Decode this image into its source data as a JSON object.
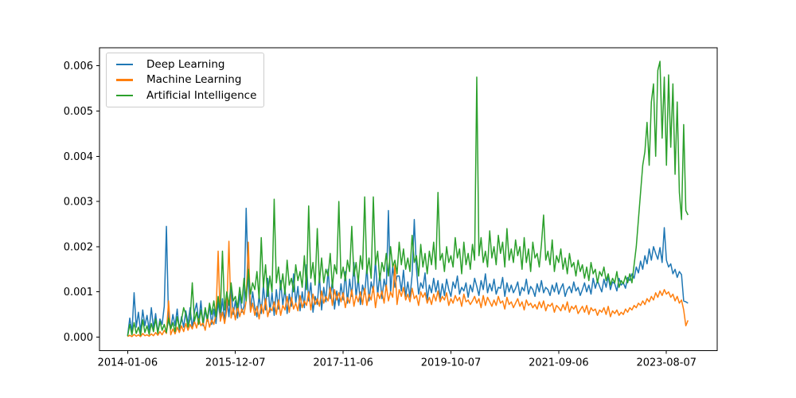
{
  "chart_data": {
    "type": "line",
    "title": "",
    "xlabel": "",
    "ylabel": "",
    "grid": false,
    "legend_position": "upper-left",
    "x_tick_labels": [
      "2014-01-06",
      "2015-12-07",
      "2017-11-06",
      "2019-10-07",
      "2021-09-06",
      "2023-08-07"
    ],
    "x_tick_weeks": [
      0,
      100,
      200,
      300,
      400,
      500
    ],
    "y_tick_labels": [
      "0.000",
      "0.001",
      "0.002",
      "0.003",
      "0.004",
      "0.005",
      "0.006"
    ],
    "xlim_weeks": [
      -26.1,
      547.1
    ],
    "ylim": [
      -0.0003,
      0.0064
    ],
    "weeks_per_point": 2,
    "value_scale": 0.0001,
    "series": [
      {
        "name": "Deep Learning",
        "color": "#1f77b4",
        "values": [
          0.3,
          4.2,
          1.0,
          9.8,
          2.2,
          5.5,
          1.2,
          6.0,
          2.5,
          4.8,
          1.5,
          6.5,
          2.0,
          5.2,
          1.0,
          4.0,
          2.8,
          6.8,
          24.5,
          3.5,
          1.8,
          5.0,
          2.5,
          6.2,
          1.5,
          4.5,
          2.2,
          5.8,
          3.0,
          6.5,
          2.0,
          5.5,
          7.5,
          3.2,
          8.0,
          2.5,
          6.0,
          3.5,
          7.0,
          2.8,
          6.2,
          3.0,
          7.8,
          4.0,
          8.5,
          3.2,
          9.0,
          4.5,
          10.5,
          5.0,
          8.0,
          4.2,
          9.5,
          5.5,
          6.8,
          28.5,
          12.0,
          5.8,
          10.0,
          6.5,
          4.5,
          9.2,
          5.2,
          11.5,
          6.0,
          13.0,
          5.5,
          9.8,
          4.8,
          10.5,
          6.2,
          12.5,
          7.0,
          10.8,
          5.2,
          9.5,
          6.8,
          14.0,
          7.5,
          11.2,
          5.8,
          10.0,
          6.5,
          16.0,
          8.0,
          12.0,
          5.5,
          9.0,
          7.2,
          13.5,
          6.0,
          11.0,
          7.8,
          15.0,
          8.5,
          12.5,
          6.2,
          10.2,
          7.0,
          11.8,
          8.2,
          14.5,
          7.5,
          12.8,
          9.0,
          16.5,
          8.8,
          13.2,
          7.2,
          11.5,
          9.5,
          15.5,
          8.0,
          12.2,
          10.0,
          17.0,
          9.2,
          14.0,
          8.5,
          12.8,
          10.5,
          28.0,
          9.8,
          15.8,
          11.0,
          13.5,
          13.5,
          10.2,
          14.8,
          9.0,
          12.2,
          8.8,
          13.8,
          26.0,
          15.2,
          9.5,
          12.0,
          10.8,
          14.2,
          8.2,
          11.5,
          9.8,
          13.0,
          10.0,
          12.5,
          8.5,
          11.8,
          9.2,
          12.8,
          10.5,
          9.0,
          12.2,
          10.8,
          13.5,
          9.5,
          11.0,
          10.2,
          12.0,
          8.8,
          11.5,
          10.0,
          13.0,
          11.2,
          9.2,
          12.5,
          10.5,
          14.0,
          9.8,
          11.8,
          10.2,
          12.8,
          9.5,
          11.0,
          10.8,
          13.2,
          9.0,
          12.0,
          10.0,
          11.5,
          9.8,
          10.8,
          12.2,
          9.2,
          11.0,
          10.2,
          12.8,
          9.5,
          11.2,
          10.5,
          9.0,
          11.8,
          10.0,
          12.5,
          9.8,
          11.0,
          10.5,
          9.2,
          11.5,
          10.0,
          12.0,
          9.5,
          10.8,
          11.8,
          9.0,
          10.5,
          11.2,
          9.8,
          12.2,
          10.2,
          11.0,
          9.2,
          10.5,
          12.0,
          10.0,
          11.5,
          9.5,
          13.0,
          10.8,
          12.5,
          11.2,
          10.0,
          12.8,
          11.0,
          13.5,
          10.5,
          12.2,
          11.8,
          10.2,
          13.0,
          11.5,
          12.0,
          10.8,
          13.2,
          12.5,
          14.0,
          13.0,
          15.5,
          14.2,
          16.8,
          15.0,
          18.0,
          16.2,
          19.5,
          17.0,
          20.0,
          18.5,
          17.2,
          19.8,
          16.5,
          24.2,
          17.0,
          15.5,
          16.2,
          14.0,
          15.0,
          13.2,
          14.5,
          13.8,
          8.0,
          7.8,
          7.5
        ]
      },
      {
        "name": "Machine Learning",
        "color": "#ff7f0e",
        "values": [
          0.1,
          0.4,
          0.1,
          0.6,
          0.2,
          0.5,
          0.1,
          0.8,
          0.3,
          0.5,
          0.2,
          0.7,
          0.3,
          1.0,
          0.4,
          1.2,
          0.5,
          1.5,
          0.8,
          8.0,
          0.5,
          1.8,
          0.7,
          2.2,
          1.0,
          2.5,
          1.2,
          3.0,
          1.5,
          2.8,
          1.8,
          3.5,
          2.0,
          4.0,
          2.5,
          3.2,
          1.5,
          4.5,
          2.2,
          3.8,
          2.8,
          5.0,
          19.0,
          3.5,
          5.5,
          3.0,
          6.0,
          21.2,
          4.2,
          6.5,
          3.8,
          7.0,
          4.5,
          6.2,
          5.0,
          8.0,
          21.0,
          5.5,
          7.5,
          4.8,
          6.8,
          4.0,
          7.2,
          5.2,
          8.5,
          4.5,
          6.5,
          5.8,
          7.8,
          5.0,
          8.2,
          4.8,
          7.0,
          6.0,
          9.0,
          5.5,
          8.8,
          6.2,
          7.5,
          5.8,
          9.2,
          6.5,
          8.0,
          7.0,
          10.0,
          6.0,
          9.5,
          7.2,
          8.5,
          6.8,
          10.2,
          7.5,
          9.0,
          8.0,
          11.0,
          7.0,
          10.5,
          8.2,
          9.8,
          7.8,
          9.8,
          6.5,
          8.8,
          7.5,
          10.5,
          6.8,
          9.2,
          7.8,
          10.0,
          7.2,
          10.8,
          7.0,
          9.5,
          8.2,
          11.2,
          6.5,
          9.8,
          8.5,
          10.2,
          7.5,
          11.5,
          8.0,
          10.0,
          8.8,
          16.0,
          7.2,
          10.5,
          9.0,
          11.0,
          8.2,
          9.5,
          7.8,
          10.8,
          8.5,
          9.2,
          7.0,
          10.0,
          8.8,
          9.8,
          7.5,
          8.8,
          7.2,
          9.5,
          8.0,
          10.2,
          7.8,
          9.0,
          8.2,
          9.8,
          7.0,
          8.5,
          7.5,
          9.2,
          8.0,
          8.8,
          6.8,
          9.5,
          7.8,
          8.2,
          7.2,
          8.0,
          9.0,
          7.5,
          8.5,
          6.5,
          9.2,
          7.0,
          8.8,
          7.8,
          6.8,
          8.2,
          7.0,
          9.0,
          7.5,
          8.0,
          6.2,
          8.8,
          7.2,
          7.8,
          6.5,
          7.5,
          8.5,
          6.8,
          7.8,
          6.0,
          8.2,
          7.0,
          7.5,
          6.5,
          7.2,
          6.2,
          7.8,
          6.5,
          8.0,
          5.8,
          7.2,
          6.8,
          7.5,
          5.5,
          7.0,
          6.5,
          5.8,
          7.2,
          6.0,
          7.8,
          5.5,
          6.8,
          6.2,
          7.0,
          5.2,
          6.0,
          6.8,
          5.5,
          7.0,
          5.0,
          6.5,
          5.8,
          6.2,
          4.8,
          6.0,
          5.5,
          6.5,
          5.0,
          6.8,
          4.5,
          5.8,
          5.2,
          6.0,
          4.8,
          5.5,
          5.0,
          6.2,
          5.5,
          6.5,
          6.0,
          7.0,
          6.5,
          7.5,
          7.0,
          8.0,
          7.2,
          8.5,
          7.8,
          9.0,
          8.2,
          9.8,
          8.8,
          10.2,
          9.2,
          10.5,
          9.5,
          10.0,
          8.8,
          9.5,
          8.0,
          9.0,
          7.5,
          8.2,
          6.0,
          2.5,
          3.7
        ]
      },
      {
        "name": "Artificial Intelligence",
        "color": "#2ca02c",
        "values": [
          0.2,
          2.8,
          0.5,
          3.2,
          0.8,
          2.2,
          0.4,
          3.8,
          1.0,
          2.5,
          0.6,
          3.0,
          1.2,
          4.0,
          0.8,
          3.5,
          1.5,
          2.8,
          1.0,
          4.2,
          1.8,
          3.2,
          1.2,
          4.5,
          2.0,
          3.8,
          6.5,
          5.0,
          2.2,
          4.0,
          12.0,
          3.5,
          5.5,
          2.8,
          6.0,
          3.2,
          6.5,
          4.0,
          7.5,
          5.0,
          8.0,
          4.5,
          9.0,
          5.5,
          19.0,
          6.0,
          10.0,
          7.0,
          12.0,
          8.0,
          9.0,
          6.5,
          11.0,
          7.5,
          13.0,
          8.0,
          15.0,
          9.5,
          12.0,
          10.5,
          14.5,
          8.5,
          22.0,
          11.0,
          16.0,
          9.0,
          13.5,
          10.0,
          30.5,
          12.0,
          15.5,
          10.5,
          14.0,
          9.5,
          17.0,
          11.5,
          13.0,
          10.0,
          16.0,
          12.5,
          14.5,
          11.0,
          18.0,
          10.5,
          29.0,
          13.0,
          16.5,
          11.5,
          24.0,
          12.0,
          17.5,
          12.0,
          15.0,
          13.5,
          18.5,
          11.0,
          16.0,
          14.0,
          30.0,
          13.0,
          15.5,
          12.5,
          17.0,
          14.5,
          24.5,
          13.5,
          16.5,
          12.0,
          18.0,
          15.0,
          31.0,
          14.0,
          17.5,
          13.0,
          31.0,
          16.0,
          19.0,
          12.5,
          16.5,
          14.5,
          18.5,
          13.5,
          20.0,
          15.5,
          17.0,
          14.0,
          21.0,
          16.0,
          19.5,
          15.0,
          17.5,
          14.5,
          22.5,
          16.5,
          18.0,
          13.5,
          20.5,
          15.5,
          18.5,
          14.0,
          19.0,
          16.0,
          21.0,
          15.0,
          32.0,
          17.0,
          18.5,
          14.5,
          20.0,
          16.5,
          18.0,
          15.5,
          22.0,
          17.5,
          19.5,
          14.0,
          21.0,
          16.0,
          18.5,
          15.0,
          20.5,
          17.0,
          57.5,
          18.0,
          22.0,
          16.5,
          19.0,
          15.5,
          23.5,
          17.5,
          20.0,
          16.0,
          22.5,
          18.5,
          21.0,
          15.5,
          24.0,
          17.0,
          19.5,
          16.5,
          21.5,
          18.0,
          20.0,
          15.0,
          22.0,
          16.5,
          19.5,
          14.5,
          21.0,
          17.5,
          18.5,
          15.5,
          20.5,
          27.0,
          17.0,
          19.0,
          16.0,
          21.5,
          14.5,
          18.0,
          16.5,
          19.5,
          15.0,
          17.5,
          14.0,
          18.5,
          15.5,
          16.5,
          13.5,
          17.0,
          14.5,
          16.0,
          13.0,
          15.5,
          12.5,
          16.5,
          14.0,
          15.0,
          12.0,
          14.5,
          13.5,
          15.5,
          12.5,
          14.0,
          11.5,
          13.0,
          12.0,
          14.5,
          11.0,
          12.5,
          11.8,
          13.5,
          12.0,
          14.0,
          12.0,
          16.0,
          20.0,
          26.0,
          32.0,
          38.0,
          41.0,
          47.5,
          38.0,
          52.0,
          56.0,
          40.0,
          59.0,
          61.0,
          44.0,
          57.5,
          38.0,
          58.0,
          42.0,
          56.0,
          36.0,
          52.0,
          32.0,
          26.0,
          47.0,
          28.0,
          27.0
        ]
      }
    ]
  }
}
